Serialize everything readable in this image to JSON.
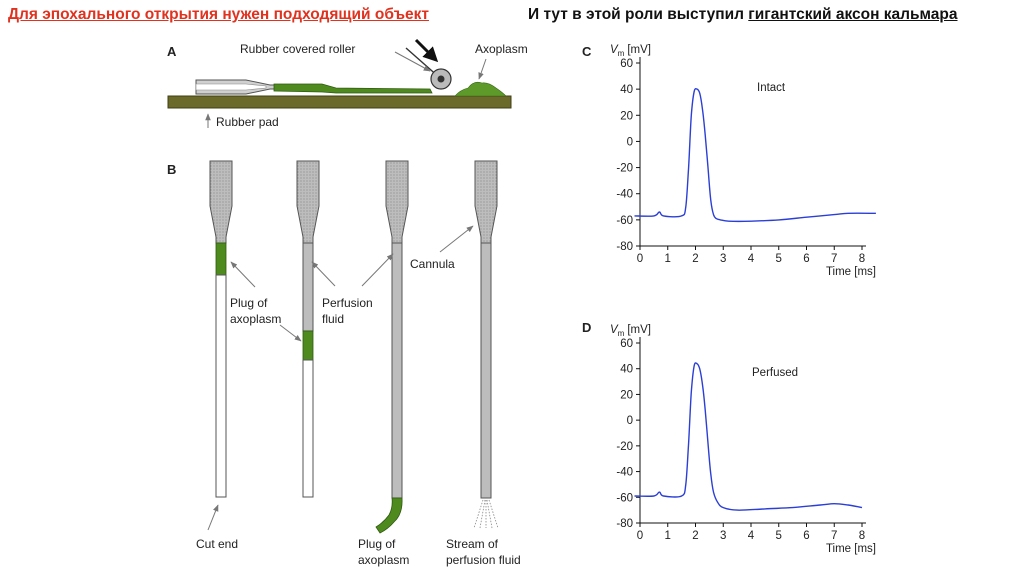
{
  "titles": {
    "left": "Для эпохального открытия нужен подходящий объект",
    "right_prefix": "И тут в этой роли выступил ",
    "right_underlined": "гигантский аксон кальмара"
  },
  "panel_a": {
    "letter": "A",
    "roller_label": "Rubber covered roller",
    "axoplasm_label": "Axoplasm",
    "pad_label": "Rubber pad"
  },
  "panel_b": {
    "letter": "B",
    "plug1": [
      "Plug of",
      "axoplasm"
    ],
    "perfusion": [
      "Perfusion",
      "fluid"
    ],
    "cannula": "Cannula",
    "cut_end": "Cut end",
    "plug2": [
      "Plug of",
      "axoplasm"
    ],
    "stream": [
      "Stream of",
      "perfusion fluid"
    ]
  },
  "colors": {
    "axoplasm": "#4f8a1f",
    "trace": "#2b3fd6",
    "title_left": "#e0321e"
  },
  "chart_data": [
    {
      "panel": "C",
      "type": "line",
      "ylabel": "V",
      "ylabel_sub": "m",
      "ylabel_unit": "[mV]",
      "xlabel": "Time [ms]",
      "annotation": "Intact",
      "xlim": [
        0,
        8
      ],
      "ylim": [
        -80,
        60
      ],
      "xticks": [
        0,
        1,
        2,
        3,
        4,
        5,
        6,
        7,
        8
      ],
      "yticks": [
        60,
        40,
        20,
        0,
        -20,
        -40,
        -60,
        -80
      ],
      "x": [
        -0.2,
        0.5,
        0.7,
        0.85,
        1.5,
        1.65,
        1.75,
        1.85,
        1.95,
        2.05,
        2.15,
        2.25,
        2.35,
        2.45,
        2.55,
        2.65,
        2.75,
        2.9,
        3.2,
        4,
        5,
        6,
        7,
        7.5,
        8.5
      ],
      "y": [
        -57,
        -57,
        -54,
        -57,
        -57,
        -50,
        -20,
        20,
        38,
        40,
        37,
        25,
        5,
        -20,
        -45,
        -56,
        -59,
        -60,
        -61,
        -61,
        -60,
        -58,
        -56,
        -55,
        -55
      ]
    },
    {
      "panel": "D",
      "type": "line",
      "ylabel": "V",
      "ylabel_sub": "m",
      "ylabel_unit": "[mV]",
      "xlabel": "Time [ms]",
      "annotation": "Perfused",
      "xlim": [
        0,
        8
      ],
      "ylim": [
        -80,
        60
      ],
      "xticks": [
        0,
        1,
        2,
        3,
        4,
        5,
        6,
        7,
        8
      ],
      "yticks": [
        60,
        40,
        20,
        0,
        -20,
        -40,
        -60,
        -80
      ],
      "x": [
        -0.2,
        0.5,
        0.7,
        0.85,
        1.5,
        1.65,
        1.75,
        1.85,
        1.95,
        2.05,
        2.15,
        2.25,
        2.35,
        2.45,
        2.55,
        2.65,
        2.8,
        3,
        3.5,
        4.5,
        5.5,
        6.5,
        7,
        7.5,
        8
      ],
      "y": [
        -59,
        -59,
        -56,
        -59,
        -59,
        -50,
        -18,
        22,
        42,
        44,
        40,
        28,
        8,
        -18,
        -42,
        -56,
        -64,
        -68,
        -70,
        -69,
        -68,
        -66,
        -65,
        -66,
        -68
      ]
    }
  ]
}
